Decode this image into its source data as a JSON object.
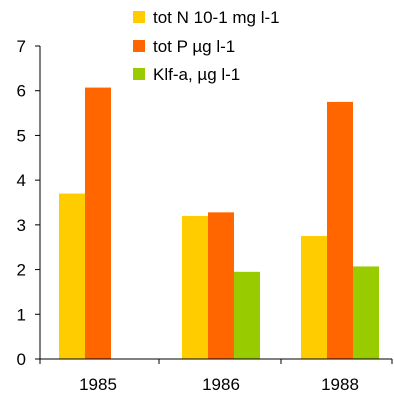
{
  "chart_data": {
    "type": "bar",
    "categories": [
      "1985",
      "1986",
      "1988"
    ],
    "series": [
      {
        "name": "tot N 10-1 mg l-1",
        "values": [
          3.7,
          3.2,
          2.75
        ],
        "color": "#FFCC00"
      },
      {
        "name": "tot P µg l-1",
        "values": [
          6.07,
          3.28,
          5.75
        ],
        "color": "#FF6600"
      },
      {
        "name": "Klf-a, µg l-1",
        "values": [
          null,
          1.95,
          2.07
        ],
        "color": "#99CC00"
      }
    ],
    "ylim": [
      0,
      7
    ],
    "yticks": [
      "0",
      "1",
      "2",
      "3",
      "4",
      "5",
      "6",
      "7"
    ],
    "grid": false,
    "legend_position": "top-right"
  }
}
